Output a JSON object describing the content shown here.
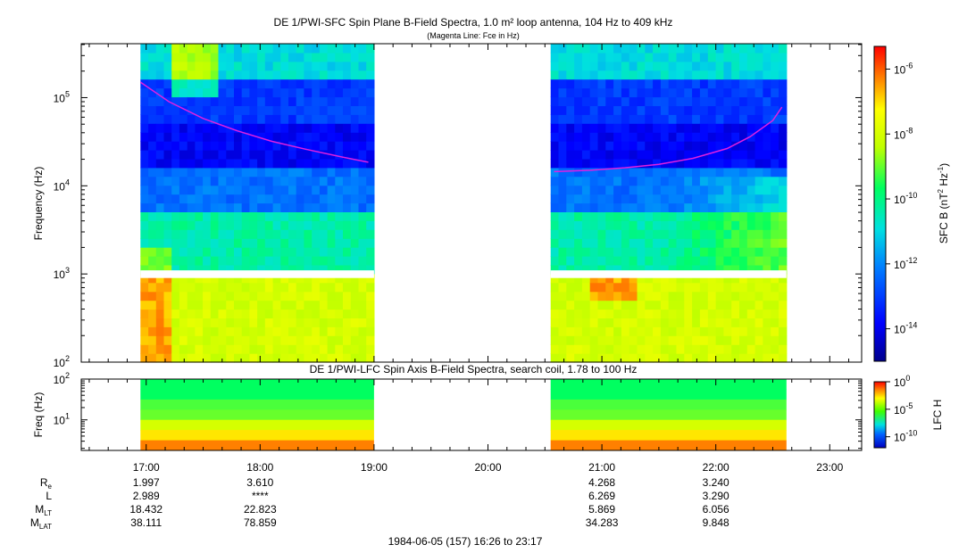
{
  "chart_data": [
    {
      "type": "heatmap",
      "title": "DE 1/PWI-SFC  Spin Plane B-Field Spectra, 1.0 m² loop antenna, 104 Hz to 409 kHz",
      "subtitle": "(Magenta Line: Fce in Hz)",
      "xlabel": "",
      "ylabel": "Frequency (Hz)",
      "yscale": "log",
      "ylim": [
        100,
        409000
      ],
      "xlim_hours": [
        16.43,
        23.28
      ],
      "yticks": [
        {
          "value": 100,
          "label": "10",
          "exp": "2"
        },
        {
          "value": 1000,
          "label": "10",
          "exp": "3"
        },
        {
          "value": 10000,
          "label": "10",
          "exp": "4"
        },
        {
          "value": 100000,
          "label": "10",
          "exp": "5"
        }
      ],
      "data_segments_hours": [
        [
          16.95,
          19.0
        ],
        [
          20.55,
          22.62
        ]
      ],
      "colorbar": {
        "label": "SFC B (nT",
        "label_exp": "2",
        "label_mid": " Hz",
        "label_exp2": "-1",
        "label_end": ")",
        "ticks": [
          {
            "value": -6,
            "label": "10",
            "exp": "-6"
          },
          {
            "value": -8,
            "label": "10",
            "exp": "-8"
          },
          {
            "value": -10,
            "label": "10",
            "exp": "-10"
          },
          {
            "value": -12,
            "label": "10",
            "exp": "-12"
          },
          {
            "value": -14,
            "label": "10",
            "exp": "-14"
          }
        ],
        "range_log10": [
          -15,
          -5.3
        ]
      },
      "fce_line": {
        "name": "Fce",
        "color": "#e020e0",
        "segments": [
          {
            "x_hours": [
              16.95,
              17.2,
              17.5,
              17.8,
              18.1,
              18.4,
              18.7,
              18.95
            ],
            "y_hz": [
              150000,
              90000,
              58000,
              42000,
              32000,
              26000,
              21500,
              18500
            ]
          },
          {
            "x_hours": [
              20.58,
              20.9,
              21.2,
              21.5,
              21.8,
              22.1,
              22.3,
              22.5,
              22.58
            ],
            "y_hz": [
              14500,
              15000,
              16000,
              17500,
              20500,
              26500,
              36000,
              55000,
              78000
            ]
          }
        ]
      }
    },
    {
      "type": "heatmap",
      "title": "DE 1/PWI-LFC  Spin Axis B-Field Spectra, search coil, 1.78 to 100 Hz",
      "ylabel": "Freq (Hz)",
      "yscale": "log",
      "ylim": [
        1.78,
        100
      ],
      "yticks": [
        {
          "value": 10,
          "label": "10",
          "exp": "1"
        },
        {
          "value": 100,
          "label": "10",
          "exp": "2"
        }
      ],
      "data_segments_hours": [
        [
          16.95,
          19.0
        ],
        [
          20.55,
          22.62
        ]
      ],
      "colorbar": {
        "label": "LFC H",
        "ticks": [
          {
            "value": 0,
            "label": "10",
            "exp": "0"
          },
          {
            "value": -5,
            "label": "10",
            "exp": "-5"
          },
          {
            "value": -10,
            "label": "10",
            "exp": "-10"
          }
        ],
        "range_log10": [
          -12,
          0
        ]
      }
    }
  ],
  "x_axis": {
    "ticks": [
      {
        "hour": 17,
        "label": "17:00"
      },
      {
        "hour": 18,
        "label": "18:00"
      },
      {
        "hour": 19,
        "label": "19:00"
      },
      {
        "hour": 20,
        "label": "20:00"
      },
      {
        "hour": 21,
        "label": "21:00"
      },
      {
        "hour": 22,
        "label": "22:00"
      },
      {
        "hour": 23,
        "label": "23:00"
      }
    ]
  },
  "ephemeris": {
    "rows": [
      {
        "label": "R",
        "sub": "e",
        "values": [
          {
            "hour": 17,
            "text": "1.997"
          },
          {
            "hour": 18,
            "text": "3.610"
          },
          {
            "hour": 21,
            "text": "4.268"
          },
          {
            "hour": 22,
            "text": "3.240"
          }
        ]
      },
      {
        "label": "L",
        "sub": "",
        "values": [
          {
            "hour": 17,
            "text": "2.989"
          },
          {
            "hour": 18,
            "text": "****"
          },
          {
            "hour": 21,
            "text": "6.269"
          },
          {
            "hour": 22,
            "text": "3.290"
          }
        ]
      },
      {
        "label": "M",
        "sub": "LT",
        "values": [
          {
            "hour": 17,
            "text": "18.432"
          },
          {
            "hour": 18,
            "text": "22.823"
          },
          {
            "hour": 21,
            "text": "5.869"
          },
          {
            "hour": 22,
            "text": "6.056"
          }
        ]
      },
      {
        "label": "M",
        "sub": "LAT",
        "values": [
          {
            "hour": 17,
            "text": "38.111"
          },
          {
            "hour": 18,
            "text": "78.859"
          },
          {
            "hour": 21,
            "text": "34.283"
          },
          {
            "hour": 22,
            "text": "9.848"
          }
        ]
      }
    ]
  },
  "footer": "1984-06-05 (157) 16:26 to 23:17"
}
